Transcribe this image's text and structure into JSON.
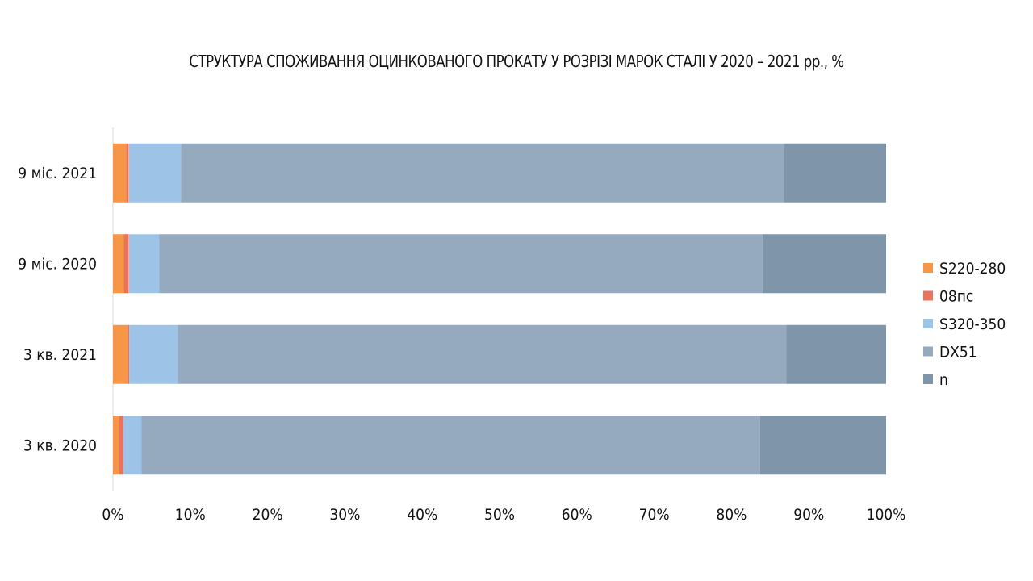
{
  "chart_data": {
    "type": "bar",
    "orientation": "horizontal",
    "stacked": true,
    "percent": true,
    "title": "СТРУКТУРА СПОЖИВАННЯ ОЦИНКОВАНОГО ПРОКАТУ У РОЗРІЗІ МАРОК СТАЛІ У 2020 – 2021 рр., %",
    "categories": [
      "9 міс. 2021",
      "9 міс. 2020",
      "3 кв. 2021",
      "3 кв. 2020"
    ],
    "series": [
      {
        "name": "S220-280",
        "color": "#F79646",
        "values": [
          1.7,
          1.4,
          1.9,
          0.8
        ]
      },
      {
        "name": "08пс",
        "color": "#E8735F",
        "values": [
          0.3,
          0.6,
          0.2,
          0.5
        ]
      },
      {
        "name": "S320-350",
        "color": "#9DC3E6",
        "values": [
          6.8,
          4.0,
          6.3,
          2.4
        ]
      },
      {
        "name": "DX51",
        "color": "#95A9BF",
        "values": [
          78.0,
          78.0,
          78.7,
          80.0
        ]
      },
      {
        "name": "n",
        "color": "#7F95A9",
        "values": [
          13.2,
          16.0,
          12.9,
          16.3
        ]
      }
    ],
    "xlim": [
      0,
      100
    ],
    "xticks": [
      "0%",
      "10%",
      "20%",
      "30%",
      "40%",
      "50%",
      "60%",
      "70%",
      "80%",
      "90%",
      "100%"
    ],
    "grid": false,
    "legend_position": "right"
  }
}
